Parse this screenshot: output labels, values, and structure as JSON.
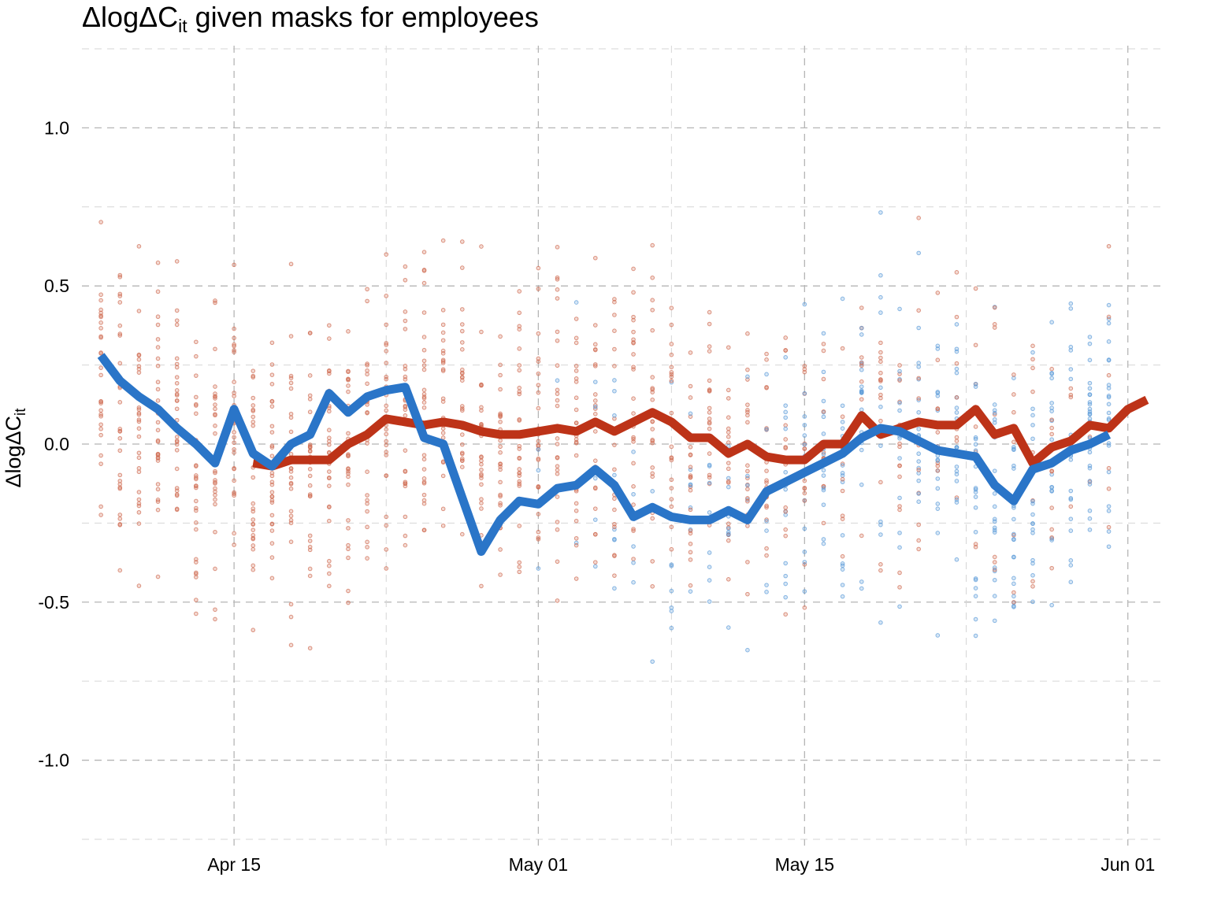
{
  "chart_data": {
    "type": "line",
    "title": "ΔlogΔC",
    "title_sub": "it",
    "title_suffix": " given masks for employees",
    "ylabel": "ΔlogΔC",
    "ylabel_sub": "it",
    "xlabel": "",
    "x_start": "2020-04-08",
    "xlim": [
      "2020-04-07",
      "2020-06-03"
    ],
    "ylim": [
      -1.27,
      1.26
    ],
    "grid": true,
    "legend": "none",
    "x_ticks": [
      {
        "date": "2020-04-15",
        "label": "Apr 15"
      },
      {
        "date": "2020-05-01",
        "label": "May 01"
      },
      {
        "date": "2020-05-15",
        "label": "May 15"
      },
      {
        "date": "2020-06-01",
        "label": "Jun 01"
      }
    ],
    "y_ticks": [
      {
        "value": 1.0,
        "label": "1.0"
      },
      {
        "value": 0.5,
        "label": "0.5"
      },
      {
        "value": 0.0,
        "label": "0.0"
      },
      {
        "value": -0.5,
        "label": "-0.5"
      },
      {
        "value": -1.0,
        "label": "-1.0"
      }
    ],
    "series": [
      {
        "color": "#2a75c8",
        "start": "2020-04-08",
        "values": [
          0.28,
          0.2,
          0.15,
          0.11,
          0.05,
          0.0,
          -0.06,
          0.11,
          -0.03,
          -0.07,
          0.0,
          0.03,
          0.16,
          0.1,
          0.15,
          0.17,
          0.18,
          0.02,
          0.0,
          -0.17,
          -0.34,
          -0.24,
          -0.18,
          -0.19,
          -0.14,
          -0.13,
          -0.08,
          -0.13,
          -0.23,
          -0.2,
          -0.23,
          -0.24,
          -0.24,
          -0.21,
          -0.24,
          -0.15,
          -0.12,
          -0.09,
          -0.06,
          -0.03,
          0.02,
          0.05,
          0.04,
          0.01,
          -0.02,
          -0.03,
          -0.04,
          -0.13,
          -0.18,
          -0.08,
          -0.06,
          -0.02,
          0.0,
          0.03
        ]
      },
      {
        "color": "#bd3318",
        "start": "2020-04-16",
        "values": [
          -0.06,
          -0.07,
          -0.05,
          -0.05,
          -0.05,
          0.0,
          0.03,
          0.08,
          0.07,
          0.06,
          0.07,
          0.06,
          0.04,
          0.03,
          0.03,
          0.04,
          0.05,
          0.04,
          0.07,
          0.04,
          0.07,
          0.1,
          0.07,
          0.02,
          0.02,
          -0.03,
          0.0,
          -0.04,
          -0.05,
          -0.05,
          0.0,
          0.0,
          0.09,
          0.03,
          0.05,
          0.07,
          0.06,
          0.06,
          0.11,
          0.03,
          0.05,
          -0.06,
          -0.01,
          0.01,
          0.06,
          0.05,
          0.11,
          0.14
        ]
      }
    ]
  }
}
